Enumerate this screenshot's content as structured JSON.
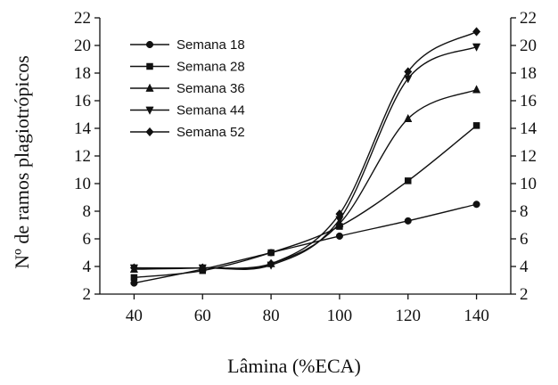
{
  "chart_data": {
    "type": "line",
    "title": "",
    "xlabel": "Lâmina (%ECA)",
    "ylabel": "Nº de ramos plagiotrópicos",
    "x": [
      40,
      60,
      80,
      100,
      120,
      140
    ],
    "xlim": [
      30,
      150
    ],
    "ylim": [
      2,
      22
    ],
    "xticks": [
      "40",
      "60",
      "80",
      "100",
      "120",
      "140"
    ],
    "yticks": [
      "2",
      "4",
      "6",
      "8",
      "10",
      "12",
      "14",
      "16",
      "18",
      "20",
      "22"
    ],
    "secondary_y_axis": true,
    "grid": false,
    "legend_position": "top-left",
    "series": [
      {
        "name": "Semana 18",
        "marker": "circle",
        "values": [
          2.8,
          3.8,
          5.0,
          6.2,
          7.3,
          8.5
        ]
      },
      {
        "name": "Semana 28",
        "marker": "square",
        "values": [
          3.2,
          3.7,
          5.0,
          6.9,
          10.2,
          14.2
        ]
      },
      {
        "name": "Semana 36",
        "marker": "triangle-up",
        "values": [
          3.8,
          3.9,
          4.2,
          7.1,
          14.7,
          16.8
        ]
      },
      {
        "name": "Semana 44",
        "marker": "triangle-down",
        "values": [
          3.9,
          3.9,
          4.1,
          7.4,
          17.6,
          19.9
        ]
      },
      {
        "name": "Semana 52",
        "marker": "diamond",
        "values": [
          3.9,
          3.9,
          4.2,
          7.8,
          18.1,
          21.0
        ]
      }
    ]
  }
}
